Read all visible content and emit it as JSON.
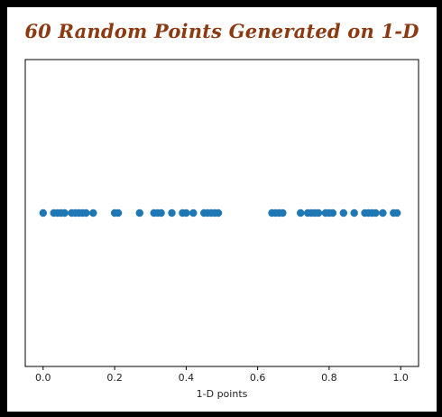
{
  "chart_data": {
    "type": "scatter",
    "title": "60 Random Points Generated on 1-D",
    "xlabel": "1-D points",
    "ylabel": "",
    "xlim": [
      -0.05,
      1.05
    ],
    "ylim": [
      -1,
      1
    ],
    "grid": false,
    "x_ticks": [
      0.0,
      0.2,
      0.4,
      0.6,
      0.8,
      1.0
    ],
    "x_tick_labels": [
      "0.0",
      "0.2",
      "0.4",
      "0.6",
      "0.8",
      "1.0"
    ],
    "series": [
      {
        "color": "#1f77b4",
        "x": [
          0.0,
          0.03,
          0.04,
          0.05,
          0.06,
          0.08,
          0.09,
          0.1,
          0.11,
          0.12,
          0.14,
          0.2,
          0.21,
          0.27,
          0.31,
          0.32,
          0.33,
          0.36,
          0.39,
          0.4,
          0.42,
          0.45,
          0.46,
          0.47,
          0.48,
          0.49,
          0.64,
          0.65,
          0.66,
          0.67,
          0.72,
          0.74,
          0.75,
          0.76,
          0.77,
          0.79,
          0.8,
          0.81,
          0.84,
          0.87,
          0.9,
          0.91,
          0.92,
          0.93,
          0.95,
          0.98,
          0.99
        ],
        "y": [
          0,
          0,
          0,
          0,
          0,
          0,
          0,
          0,
          0,
          0,
          0,
          0,
          0,
          0,
          0,
          0,
          0,
          0,
          0,
          0,
          0,
          0,
          0,
          0,
          0,
          0,
          0,
          0,
          0,
          0,
          0,
          0,
          0,
          0,
          0,
          0,
          0,
          0,
          0,
          0,
          0,
          0,
          0,
          0,
          0,
          0,
          0
        ]
      }
    ]
  }
}
